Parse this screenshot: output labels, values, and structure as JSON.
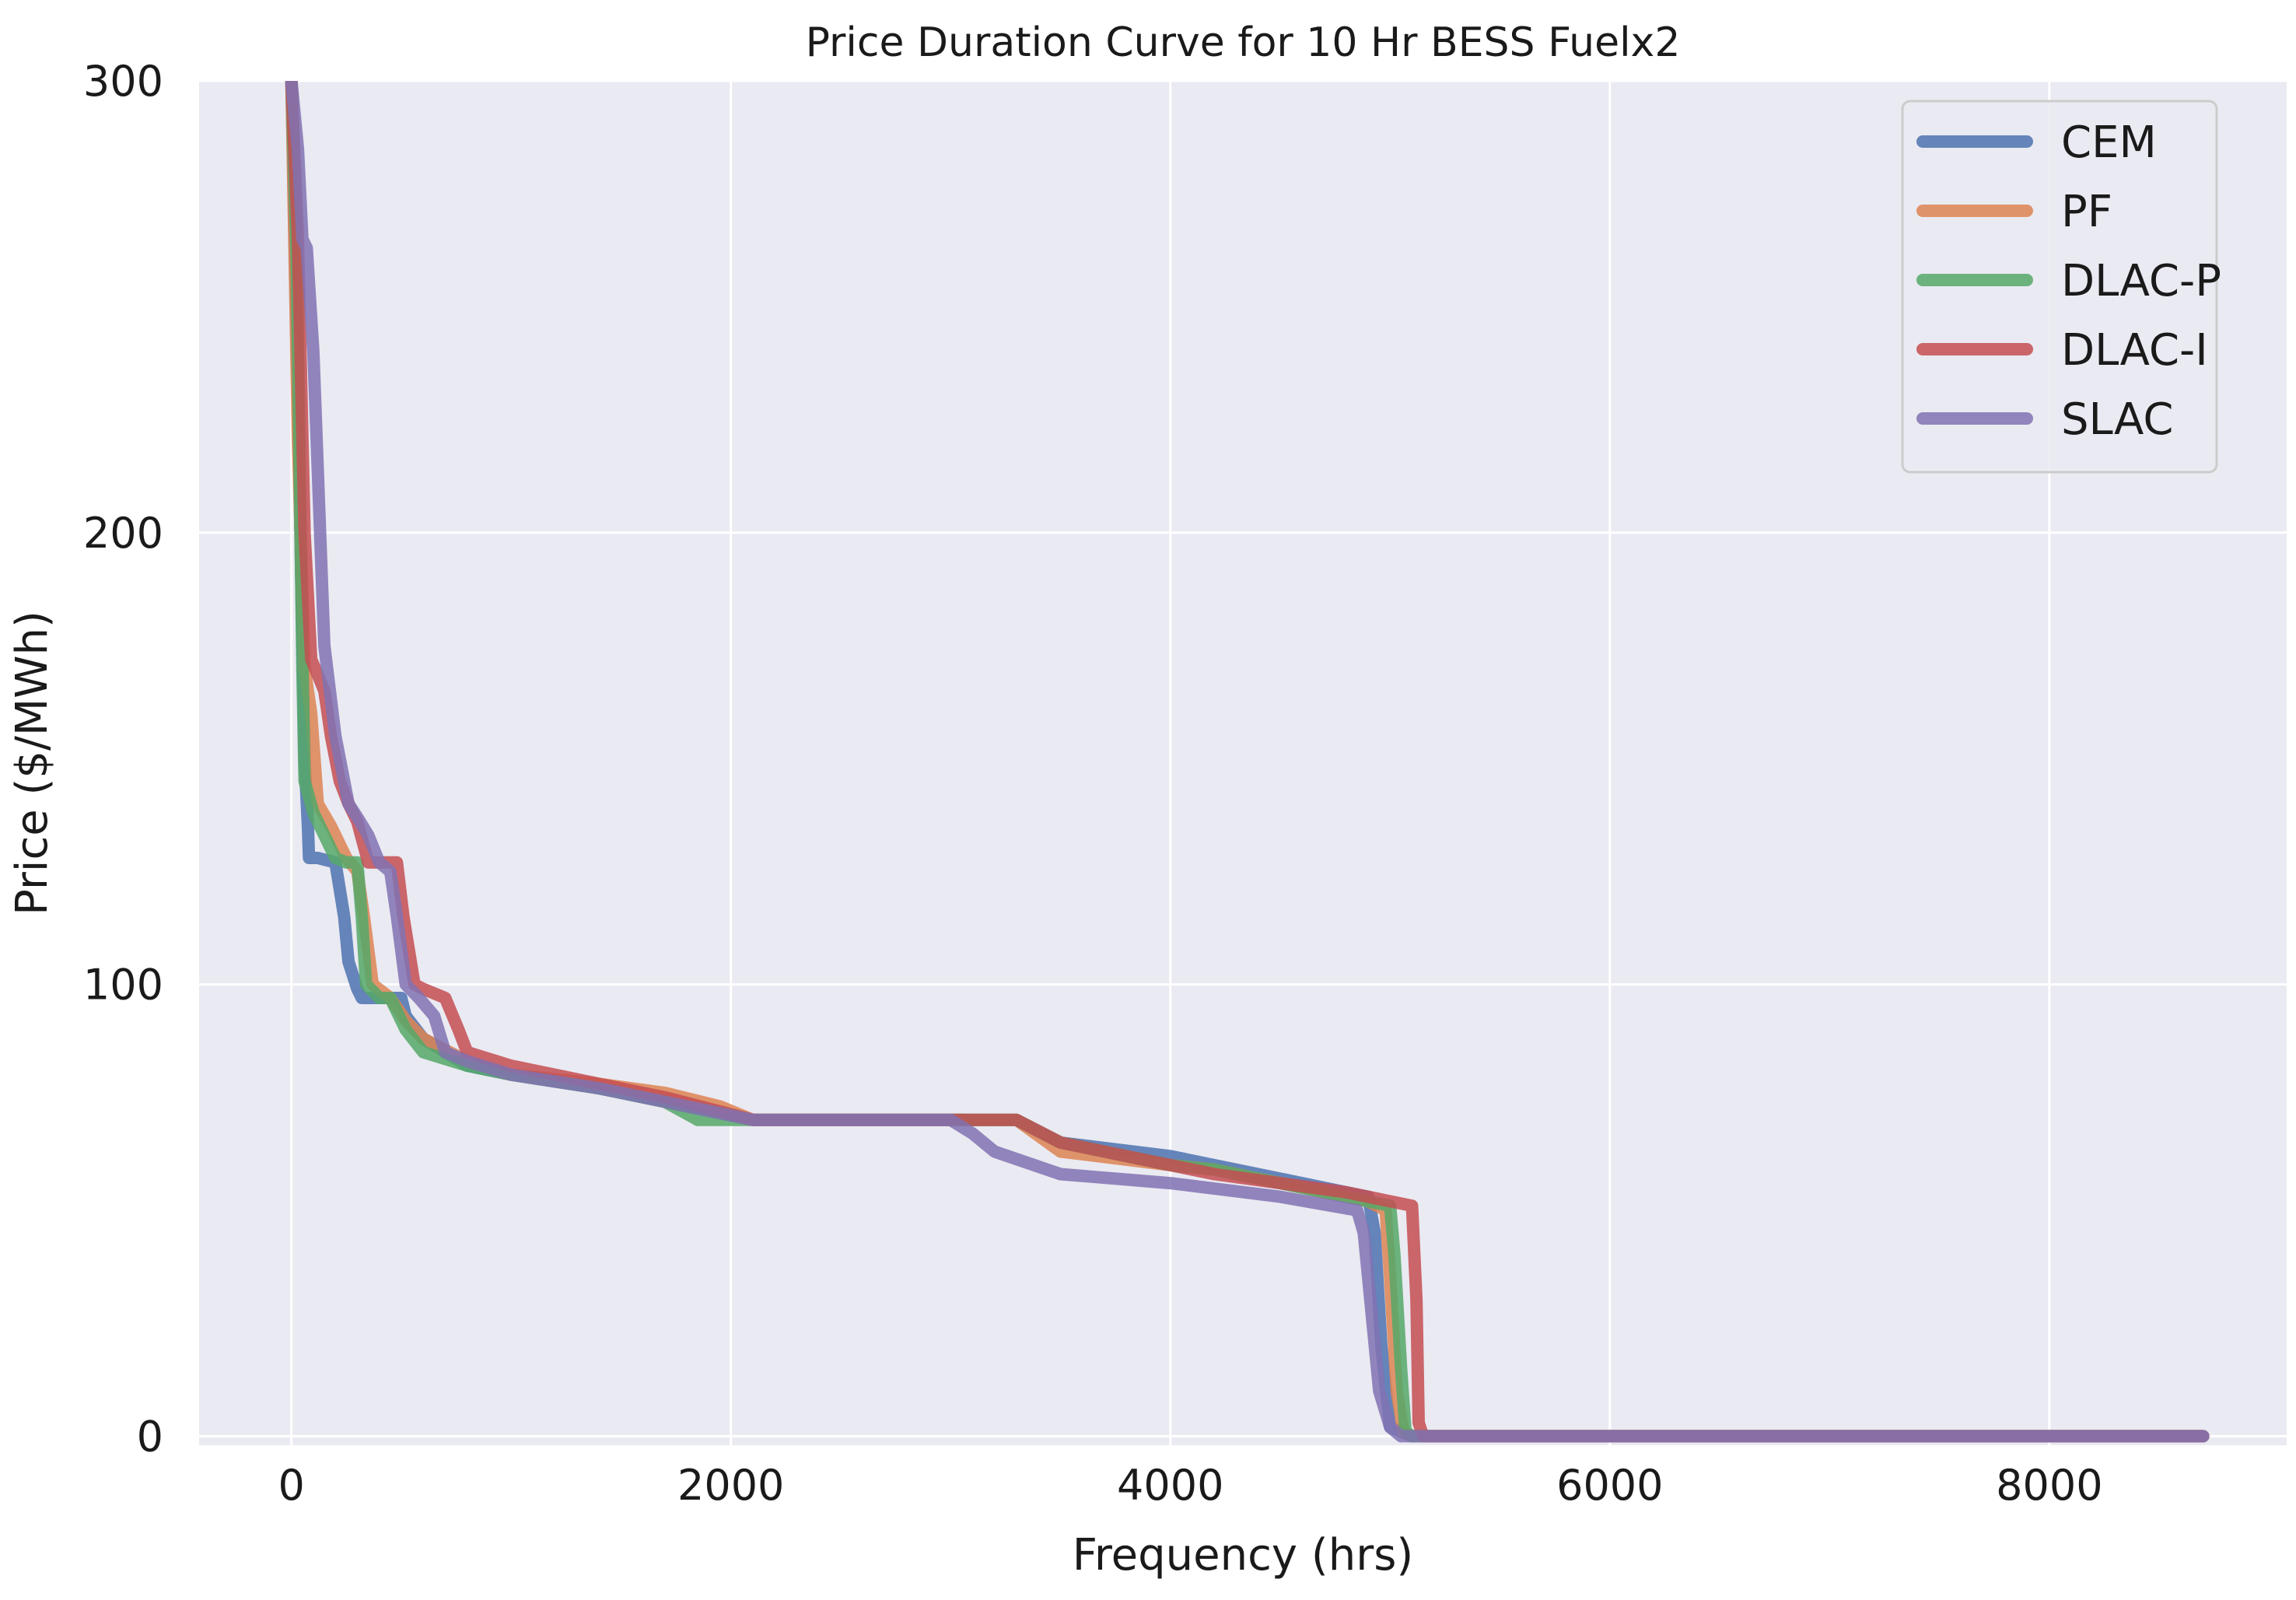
{
  "chart_data": {
    "type": "line",
    "title": "Price Duration Curve for 10 Hr BESS Fuelx2",
    "xlabel": "Frequency (hrs)",
    "ylabel": "Price ($/MWh)",
    "xlim": [
      -420,
      9080
    ],
    "ylim": [
      -2,
      300
    ],
    "xticks": [
      0,
      2000,
      4000,
      6000,
      8000
    ],
    "xtick_labels": [
      "0",
      "2000",
      "4000",
      "6000",
      "8000"
    ],
    "yticks": [
      0,
      100,
      200,
      300
    ],
    "ytick_labels": [
      "0",
      "100",
      "200",
      "300"
    ],
    "grid": true,
    "legend_position": "top-right",
    "background": "#eaeaf2",
    "series": [
      {
        "name": "CEM",
        "color": "#4c72b0",
        "x": [
          0,
          30,
          60,
          75,
          80,
          120,
          200,
          240,
          260,
          300,
          320,
          500,
          520,
          600,
          800,
          1000,
          1400,
          1700,
          1900,
          2100,
          3300,
          3500,
          4000,
          4200,
          4500,
          4800,
          4900,
          4930,
          4960,
          5000,
          5100,
          8700
        ],
        "y": [
          300,
          230,
          150,
          135,
          128,
          128,
          127,
          115,
          105,
          99,
          97,
          97,
          93,
          88,
          82,
          80,
          77,
          74,
          72,
          70,
          70,
          65,
          62,
          60,
          57,
          54,
          53,
          45,
          20,
          2,
          0,
          0
        ]
      },
      {
        "name": "PF",
        "color": "#dd8452",
        "x": [
          0,
          30,
          60,
          90,
          120,
          180,
          250,
          300,
          330,
          370,
          450,
          520,
          600,
          800,
          1000,
          1400,
          1700,
          1950,
          2100,
          3300,
          3500,
          4000,
          4200,
          4500,
          4900,
          4980,
          5000,
          5030,
          5060,
          5100,
          8700
        ],
        "y": [
          300,
          220,
          170,
          160,
          140,
          135,
          128,
          125,
          115,
          100,
          97,
          92,
          88,
          83,
          80,
          78,
          76,
          73,
          70,
          70,
          63,
          60,
          59,
          56,
          52,
          50,
          35,
          10,
          1,
          0,
          0
        ]
      },
      {
        "name": "DLAC-P",
        "color": "#55a868",
        "x": [
          0,
          25,
          50,
          60,
          100,
          130,
          180,
          200,
          250,
          300,
          320,
          340,
          400,
          450,
          520,
          600,
          800,
          1000,
          1400,
          1700,
          1850,
          2100,
          3300,
          3500,
          4000,
          4200,
          4500,
          5000,
          5020,
          5050,
          5070,
          5100,
          8700
        ],
        "y": [
          300,
          260,
          170,
          145,
          138,
          135,
          130,
          128,
          127,
          127,
          115,
          100,
          97,
          97,
          90,
          85,
          82,
          80,
          77,
          74,
          70,
          70,
          70,
          65,
          60,
          59,
          56,
          51,
          40,
          15,
          1,
          0,
          0
        ]
      },
      {
        "name": "DLAC-I",
        "color": "#c44e52",
        "x": [
          0,
          30,
          60,
          90,
          150,
          180,
          220,
          260,
          300,
          350,
          480,
          510,
          560,
          600,
          700,
          760,
          800,
          1000,
          1400,
          1700,
          2100,
          3300,
          3500,
          4000,
          4200,
          4500,
          4800,
          5100,
          5120,
          5130,
          5150,
          8700
        ],
        "y": [
          300,
          265,
          200,
          172,
          165,
          155,
          145,
          140,
          136,
          127,
          127,
          115,
          100,
          99,
          97,
          90,
          85,
          82,
          78,
          75,
          70,
          70,
          65,
          60,
          58,
          56,
          54,
          51,
          30,
          3,
          0,
          0
        ]
      },
      {
        "name": "SLAC",
        "color": "#8172b3",
        "x": [
          0,
          30,
          50,
          70,
          100,
          150,
          200,
          260,
          300,
          350,
          400,
          450,
          480,
          520,
          580,
          650,
          700,
          800,
          1000,
          1400,
          1700,
          2100,
          3000,
          3100,
          3200,
          3500,
          4000,
          4500,
          4850,
          4880,
          4910,
          4950,
          5000,
          5050,
          8700
        ],
        "y": [
          300,
          285,
          265,
          263,
          240,
          175,
          155,
          140,
          137,
          133,
          127,
          125,
          115,
          100,
          97,
          93,
          85,
          83,
          80,
          77,
          74,
          70,
          70,
          67,
          63,
          58,
          56,
          53,
          50,
          45,
          30,
          10,
          2,
          0,
          0
        ]
      }
    ]
  }
}
